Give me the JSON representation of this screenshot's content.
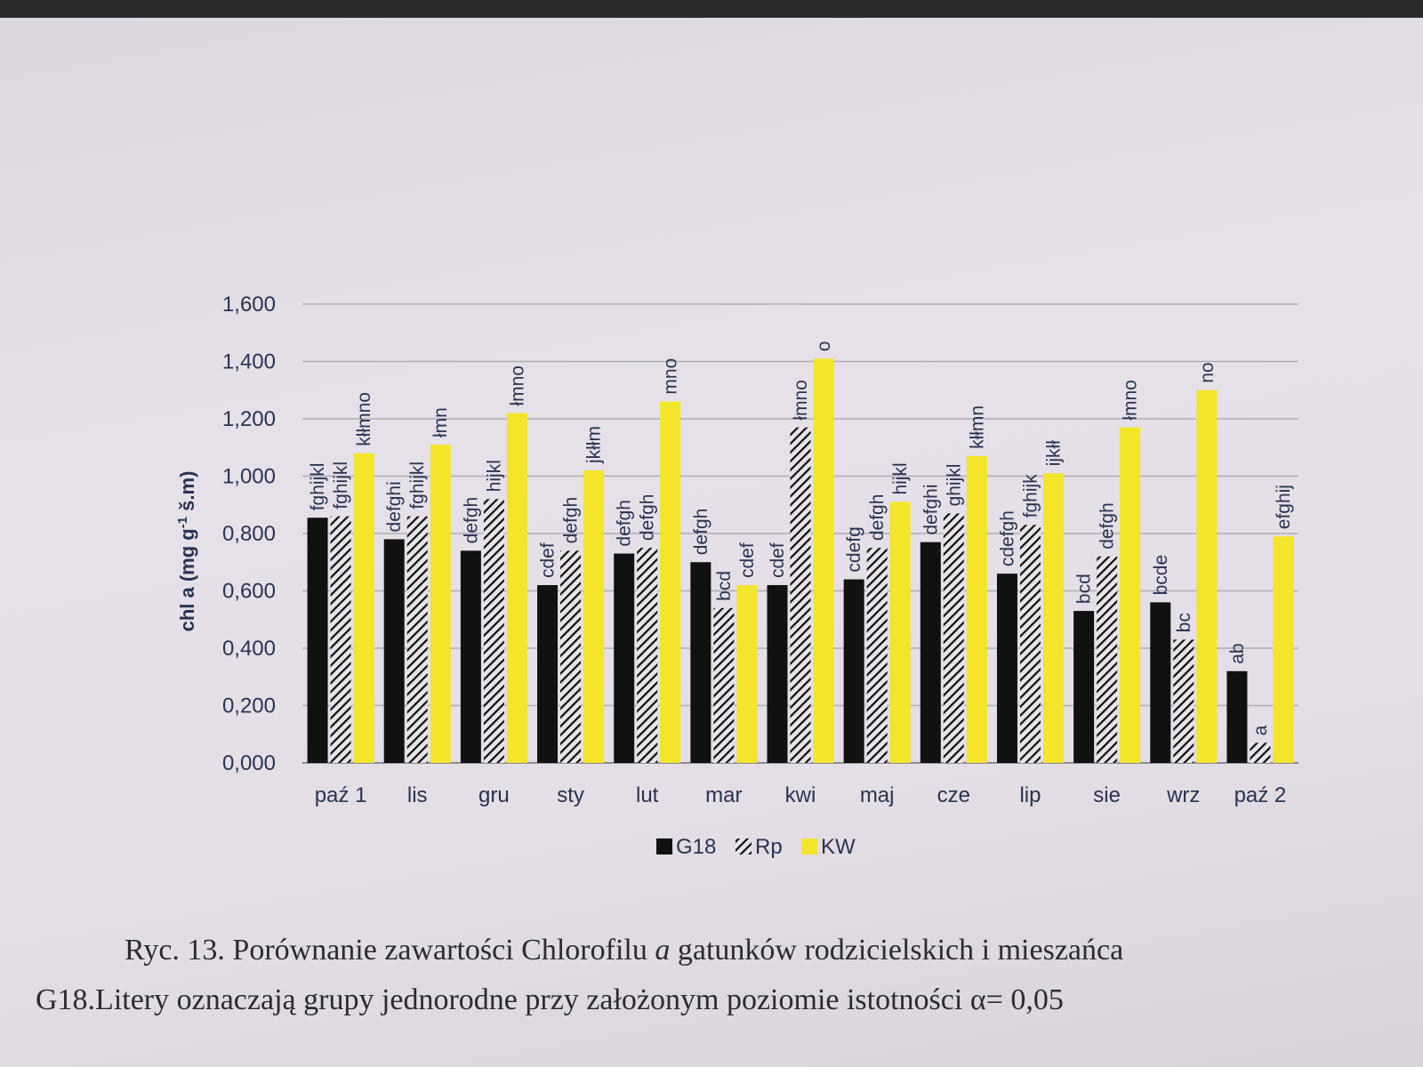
{
  "chart_data": {
    "type": "bar",
    "ylabel": "chl a (mg g",
    "ylabel_sup": "-1",
    "ylabel_end": " š.m)",
    "ylim": [
      0,
      1.6
    ],
    "yticks": [
      "0,000",
      "0,200",
      "0,400",
      "0,600",
      "0,800",
      "1,000",
      "1,200",
      "1,400",
      "1,600"
    ],
    "categories": [
      "paź 1",
      "lis",
      "gru",
      "sty",
      "lut",
      "mar",
      "kwi",
      "maj",
      "cze",
      "lip",
      "sie",
      "wrz",
      "paź 2"
    ],
    "series": [
      {
        "name": "G18",
        "color": "#111111",
        "pattern": "solid",
        "values": [
          0.855,
          0.78,
          0.74,
          0.62,
          0.73,
          0.7,
          0.62,
          0.64,
          0.77,
          0.66,
          0.53,
          0.56,
          0.32
        ],
        "labels": [
          "fghijkl",
          "defghi",
          "defgh",
          "cdef",
          "defgh",
          "defgh",
          "cdef",
          "cdefg",
          "defghi",
          "cdefgh",
          "bcd",
          "bcde",
          "ab"
        ]
      },
      {
        "name": "Rp",
        "color": "#111111",
        "pattern": "hatched",
        "values": [
          0.86,
          0.86,
          0.92,
          0.74,
          0.75,
          0.54,
          1.17,
          0.75,
          0.87,
          0.83,
          0.72,
          0.43,
          0.07
        ],
        "labels": [
          "fghijkl",
          "fghijkl",
          "hijkl",
          "defgh",
          "defgh",
          "bcd",
          "łmno",
          "defgh",
          "ghijkl",
          "fghijk",
          "defgh",
          "bc",
          "a"
        ]
      },
      {
        "name": "KW",
        "color": "#f2e52a",
        "pattern": "solid",
        "values": [
          1.08,
          1.11,
          1.22,
          1.02,
          1.26,
          0.62,
          1.41,
          0.91,
          1.07,
          1.01,
          1.17,
          1.3,
          0.79
        ],
        "labels": [
          "kłłmno",
          "łmn",
          "łmno",
          "jkłłm",
          "mno",
          "cdef",
          "o",
          "hijkl",
          "kłłmn",
          "ijkłł",
          "łmno",
          "no",
          "efghij"
        ]
      }
    ],
    "legend_position": "bottom",
    "grid": true
  },
  "caption": {
    "line1_part1": "Ryc. 13. Porównanie zawartości Chlorofilu ",
    "line1_italic": "a",
    "line1_part2": " gatunków rodzicielskich i mieszańca",
    "line2": "G18.Litery oznaczają grupy jednorodne przy założonym poziomie istotności α= 0,05"
  }
}
